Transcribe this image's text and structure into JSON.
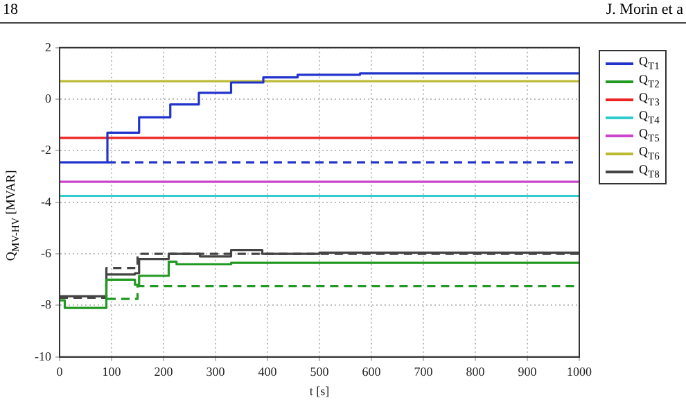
{
  "chart_data": {
    "type": "step",
    "xlabel": "t [s]",
    "ylabel": "Q$_{MV-HV}$ [MVAR]",
    "annotations": [
      "18",
      "J. Morin et a"
    ],
    "xlim": [
      0,
      1000
    ],
    "xticks": [
      0,
      100,
      200,
      300,
      400,
      500,
      600,
      700,
      800,
      900,
      1000
    ],
    "ylim": [
      -10,
      2
    ],
    "yticks": [
      -10,
      -8,
      -6,
      -4,
      -2,
      0,
      2
    ],
    "grid": true,
    "legend": "right",
    "line_style": "solid",
    "marker": "none",
    "series": [
      {
        "name": "Q$_{T1}$",
        "color": "#2233cc",
        "x": [
          0,
          92,
          153,
          213,
          268,
          330,
          392,
          458,
          578,
          1000
        ],
        "values": [
          -2.45,
          -1.3,
          -0.7,
          -0.2,
          0.25,
          0.65,
          0.85,
          0.95,
          1.0,
          1.0
        ]
      },
      {
        "color": "#2233cc",
        "line_style": "dashed",
        "x": [
          92,
          1000
        ],
        "values": [
          -2.45,
          -2.45
        ]
      },
      {
        "name": "Q$_{T2}$",
        "color": "#229922",
        "x": [
          0,
          10,
          90,
          145,
          153,
          210,
          225,
          330,
          1000
        ],
        "values": [
          -7.8,
          -8.1,
          -7.0,
          -7.2,
          -6.85,
          -6.3,
          -6.4,
          -6.35,
          -6.35
        ]
      },
      {
        "color": "#229922",
        "line_style": "dashed",
        "x": [
          92,
          150,
          1000
        ],
        "values": [
          -7.75,
          -7.25,
          -7.25
        ]
      },
      {
        "name": "Q$_{T3}$",
        "color": "#ee2222",
        "x": [
          0,
          1000
        ],
        "values": [
          -1.5,
          -1.5
        ]
      },
      {
        "name": "Q$_{T4}$",
        "color": "#33cccc",
        "x": [
          0,
          1000
        ],
        "values": [
          -3.75,
          -3.75
        ]
      },
      {
        "name": "Q$_{T5}$",
        "color": "#cc44cc",
        "x": [
          0,
          1000
        ],
        "values": [
          -3.2,
          -3.2
        ]
      },
      {
        "name": "Q$_{T6}$",
        "color": "#bbbb33",
        "x": [
          0,
          1000
        ],
        "values": [
          0.7,
          0.7
        ]
      },
      {
        "name": "Q$_{T8}$",
        "color": "#444444",
        "x": [
          0,
          90,
          145,
          153,
          210,
          270,
          330,
          390,
          500,
          1000
        ],
        "values": [
          -7.65,
          -6.8,
          -6.75,
          -6.2,
          -6.0,
          -6.1,
          -5.85,
          -6.0,
          -5.95,
          -5.95
        ]
      },
      {
        "color": "#444444",
        "line_style": "dashed",
        "x": [
          0,
          90,
          150,
          1000
        ],
        "values": [
          -7.7,
          -6.55,
          -6.0,
          -5.95
        ]
      }
    ]
  }
}
